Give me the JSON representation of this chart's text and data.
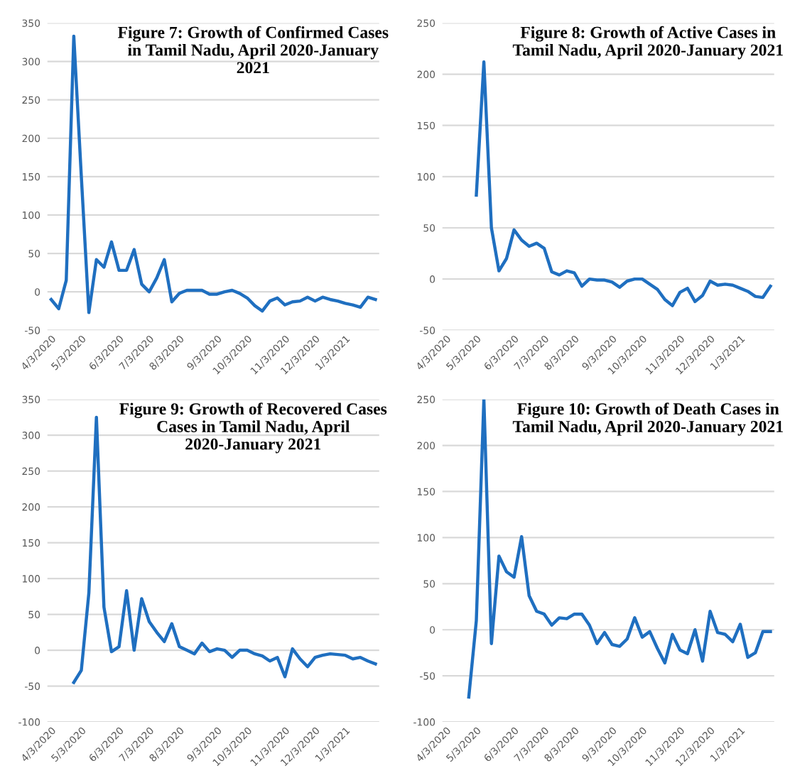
{
  "chart_data": [
    {
      "type": "line",
      "title": "Figure 7: Growth of Confirmed Cases in Tamil Nadu, April 2020-January 2021",
      "categories": [
        "4/3/2020",
        null,
        null,
        null,
        "5/3/2020",
        null,
        null,
        null,
        null,
        "6/3/2020",
        null,
        null,
        null,
        "7/3/2020",
        null,
        null,
        null,
        "8/3/2020",
        null,
        null,
        null,
        null,
        "9/3/2020",
        null,
        null,
        null,
        "10/3/2020",
        null,
        null,
        null,
        null,
        "11/3/2020",
        null,
        null,
        null,
        "12/3/2020",
        null,
        null,
        null,
        "1/3/2021",
        null,
        null,
        null,
        null
      ],
      "series": [
        {
          "color": "#1f6fc0",
          "values": [
            -10,
            -22,
            15,
            333,
            150,
            -27,
            42,
            32,
            65,
            28,
            28,
            55,
            10,
            0,
            18,
            42,
            -13,
            -2,
            2,
            2,
            2,
            -3,
            -3,
            0,
            2,
            -2,
            -8,
            -18,
            -25,
            -12,
            -8,
            -17,
            -13,
            -12,
            -7,
            -12,
            -7,
            -10,
            -12,
            -15,
            -17,
            -20,
            -7,
            -10
          ]
        }
      ],
      "ylim": [
        -50,
        350
      ],
      "yticks": [
        -50,
        0,
        50,
        100,
        150,
        200,
        250,
        300,
        350
      ],
      "grid": "y",
      "marker": "none",
      "line_style": "solid"
    },
    {
      "type": "line",
      "title": "Figure 8: Growth of Active Cases in Tamil Nadu, April 2020-January 2021",
      "categories": [
        "4/3/2020",
        null,
        null,
        null,
        "5/3/2020",
        null,
        null,
        null,
        null,
        "6/3/2020",
        null,
        null,
        null,
        "7/3/2020",
        null,
        null,
        null,
        "8/3/2020",
        null,
        null,
        null,
        null,
        "9/3/2020",
        null,
        null,
        null,
        "10/3/2020",
        null,
        null,
        null,
        null,
        "11/3/2020",
        null,
        null,
        null,
        "12/3/2020",
        null,
        null,
        null,
        "1/3/2021",
        null,
        null,
        null,
        null
      ],
      "series": [
        {
          "color": "#1f6fc0",
          "values": [
            null,
            null,
            null,
            null,
            82,
            212,
            50,
            8,
            20,
            48,
            38,
            32,
            35,
            30,
            7,
            4,
            8,
            6,
            -7,
            0,
            -1,
            -1,
            -3,
            -8,
            -2,
            0,
            0,
            -5,
            -10,
            -20,
            -26,
            -13,
            -9,
            -22,
            -16,
            -2,
            -6,
            -5,
            -6,
            -9,
            -12,
            -17,
            -18,
            -7
          ]
        }
      ],
      "ylim": [
        -50,
        250
      ],
      "yticks": [
        -50,
        0,
        50,
        100,
        150,
        200,
        250
      ],
      "grid": "y",
      "marker": "none",
      "line_style": "solid"
    },
    {
      "type": "line",
      "title": "Figure 9: Growth of Recovered Cases Cases in Tamil Nadu, April 2020-January 2021",
      "categories": [
        "4/3/2020",
        null,
        null,
        null,
        "5/3/2020",
        null,
        null,
        null,
        null,
        "6/3/2020",
        null,
        null,
        null,
        "7/3/2020",
        null,
        null,
        null,
        "8/3/2020",
        null,
        null,
        null,
        null,
        "9/3/2020",
        null,
        null,
        null,
        "10/3/2020",
        null,
        null,
        null,
        null,
        "11/3/2020",
        null,
        null,
        null,
        "12/3/2020",
        null,
        null,
        null,
        "1/3/2021",
        null,
        null,
        null,
        null
      ],
      "series": [
        {
          "color": "#1f6fc0",
          "values": [
            null,
            null,
            null,
            -45,
            -28,
            80,
            325,
            60,
            -2,
            5,
            83,
            0,
            72,
            40,
            25,
            12,
            37,
            5,
            0,
            -5,
            10,
            -2,
            2,
            0,
            -10,
            0,
            0,
            -5,
            -8,
            -15,
            -10,
            -37,
            2,
            -12,
            -23,
            -10,
            -7,
            -5,
            -6,
            -7,
            -12,
            -10,
            -15,
            -19
          ]
        }
      ],
      "ylim": [
        -100,
        350
      ],
      "yticks": [
        -100,
        -50,
        0,
        50,
        100,
        150,
        200,
        250,
        300,
        350
      ],
      "grid": "y",
      "marker": "none",
      "line_style": "solid"
    },
    {
      "type": "line",
      "title": "Figure 10: Growth of Death Cases in Tamil Nadu, April 2020-January 2021",
      "categories": [
        "4/3/2020",
        null,
        null,
        null,
        "5/3/2020",
        null,
        null,
        null,
        null,
        "6/3/2020",
        null,
        null,
        null,
        "7/3/2020",
        null,
        null,
        null,
        "8/3/2020",
        null,
        null,
        null,
        null,
        "9/3/2020",
        null,
        null,
        null,
        "10/3/2020",
        null,
        null,
        null,
        null,
        "11/3/2020",
        null,
        null,
        null,
        "12/3/2020",
        null,
        null,
        null,
        "1/3/2021",
        null,
        null,
        null,
        null
      ],
      "series": [
        {
          "color": "#1f6fc0",
          "values": [
            null,
            null,
            null,
            -73,
            10,
            250,
            -15,
            80,
            63,
            57,
            101,
            37,
            20,
            17,
            5,
            13,
            12,
            17,
            17,
            5,
            -15,
            -3,
            -16,
            -18,
            -10,
            13,
            -8,
            -2,
            -20,
            -36,
            -5,
            -22,
            -26,
            0,
            -34,
            20,
            -3,
            -5,
            -13,
            6,
            -30,
            -25,
            -2,
            -2
          ]
        }
      ],
      "ylim": [
        -100,
        250
      ],
      "yticks": [
        -100,
        -50,
        0,
        50,
        100,
        150,
        200,
        250
      ],
      "grid": "y",
      "marker": "none",
      "line_style": "solid"
    }
  ]
}
